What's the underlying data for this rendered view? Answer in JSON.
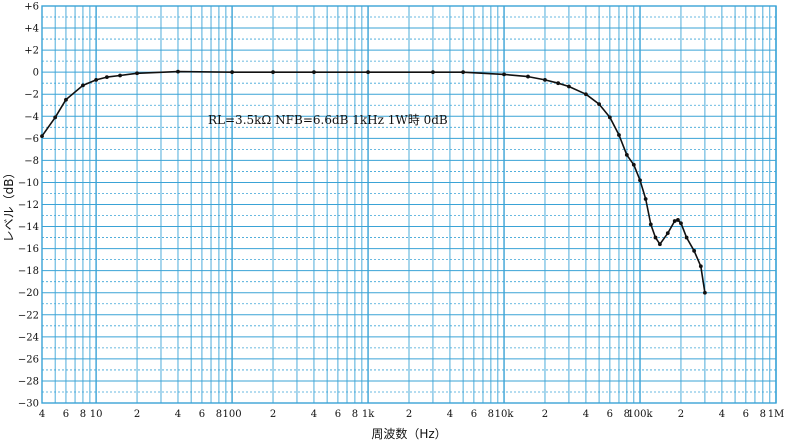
{
  "chart_data": {
    "type": "line",
    "annotation": "RL=3.5kΩ  NFB=6.6dB  1kHz 1W時 0dB",
    "xlabel": "周波数（Hz）",
    "ylabel": "レベル（dB）",
    "x_scale": "log",
    "xlim": [
      4,
      1000000
    ],
    "ylim": [
      -30,
      6
    ],
    "grid": true,
    "colors": {
      "grid": "#3aa3d6",
      "line": "#111111",
      "background": "#ffffff"
    },
    "x_ticks": [
      {
        "value": 4,
        "label": "4"
      },
      {
        "value": 6,
        "label": "6"
      },
      {
        "value": 8,
        "label": "8"
      },
      {
        "value": 10,
        "label": "10"
      },
      {
        "value": 20,
        "label": "2"
      },
      {
        "value": 40,
        "label": "4"
      },
      {
        "value": 60,
        "label": "6"
      },
      {
        "value": 80,
        "label": "8"
      },
      {
        "value": 100,
        "label": "100"
      },
      {
        "value": 200,
        "label": "2"
      },
      {
        "value": 400,
        "label": "4"
      },
      {
        "value": 600,
        "label": "6"
      },
      {
        "value": 800,
        "label": "8"
      },
      {
        "value": 1000,
        "label": "1k"
      },
      {
        "value": 2000,
        "label": "2"
      },
      {
        "value": 4000,
        "label": "4"
      },
      {
        "value": 6000,
        "label": "6"
      },
      {
        "value": 8000,
        "label": "8"
      },
      {
        "value": 10000,
        "label": "10k"
      },
      {
        "value": 20000,
        "label": "2"
      },
      {
        "value": 40000,
        "label": "4"
      },
      {
        "value": 60000,
        "label": "6"
      },
      {
        "value": 80000,
        "label": "8"
      },
      {
        "value": 100000,
        "label": "100k"
      },
      {
        "value": 200000,
        "label": "2"
      },
      {
        "value": 400000,
        "label": "4"
      },
      {
        "value": 600000,
        "label": "6"
      },
      {
        "value": 800000,
        "label": "8"
      },
      {
        "value": 1000000,
        "label": "1M"
      }
    ],
    "y_ticks": [
      {
        "value": 6,
        "label": "+6"
      },
      {
        "value": 4,
        "label": "+4"
      },
      {
        "value": 2,
        "label": "+2"
      },
      {
        "value": 0,
        "label": "0"
      },
      {
        "value": -2,
        "label": "−2"
      },
      {
        "value": -4,
        "label": "−4"
      },
      {
        "value": -6,
        "label": "−6"
      },
      {
        "value": -8,
        "label": "−8"
      },
      {
        "value": -10,
        "label": "−10"
      },
      {
        "value": -12,
        "label": "−12"
      },
      {
        "value": -14,
        "label": "−14"
      },
      {
        "value": -16,
        "label": "−16"
      },
      {
        "value": -18,
        "label": "−18"
      },
      {
        "value": -20,
        "label": "−20"
      },
      {
        "value": -22,
        "label": "−22"
      },
      {
        "value": -24,
        "label": "−24"
      },
      {
        "value": -26,
        "label": "−26"
      },
      {
        "value": -28,
        "label": "−28"
      },
      {
        "value": -30,
        "label": "−30"
      }
    ],
    "series": [
      {
        "points": [
          [
            4,
            -5.8
          ],
          [
            5,
            -4.1
          ],
          [
            6,
            -2.5
          ],
          [
            8,
            -1.2
          ],
          [
            10,
            -0.7
          ],
          [
            12,
            -0.45
          ],
          [
            15,
            -0.3
          ],
          [
            20,
            -0.1
          ],
          [
            40,
            0.05
          ],
          [
            100,
            0.0
          ],
          [
            200,
            0.0
          ],
          [
            400,
            0.0
          ],
          [
            1000,
            0.0
          ],
          [
            3000,
            0.0
          ],
          [
            5000,
            0.0
          ],
          [
            10000,
            -0.2
          ],
          [
            15000,
            -0.4
          ],
          [
            20000,
            -0.7
          ],
          [
            25000,
            -1.0
          ],
          [
            30000,
            -1.3
          ],
          [
            40000,
            -2.0
          ],
          [
            50000,
            -2.9
          ],
          [
            60000,
            -4.1
          ],
          [
            70000,
            -5.7
          ],
          [
            80000,
            -7.5
          ],
          [
            90000,
            -8.4
          ],
          [
            100000,
            -9.8
          ],
          [
            110000,
            -11.5
          ],
          [
            120000,
            -13.8
          ],
          [
            130000,
            -15.0
          ],
          [
            140000,
            -15.6
          ],
          [
            160000,
            -14.6
          ],
          [
            180000,
            -13.5
          ],
          [
            190000,
            -13.4
          ],
          [
            200000,
            -13.7
          ],
          [
            220000,
            -15.0
          ],
          [
            250000,
            -16.2
          ],
          [
            280000,
            -17.6
          ],
          [
            300000,
            -20.0
          ]
        ]
      }
    ]
  }
}
